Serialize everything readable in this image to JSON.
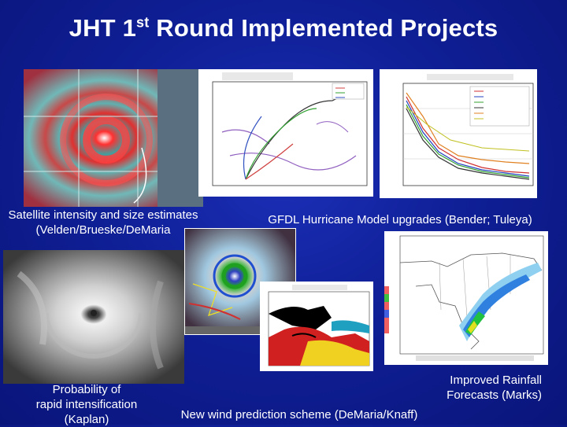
{
  "slide": {
    "title_part1": "JHT 1",
    "title_sup": "st",
    "title_part2": " Round Implemented Projects",
    "captions": {
      "satellite_line1": "Satellite intensity and size estimates",
      "satellite_line2": "(Velden/Brueske/DeMaria",
      "gfdl": "GFDL Hurricane Model upgrades (Bender; Tuleya)",
      "rapid_line1": "Probability of",
      "rapid_line2": "rapid intensification",
      "rapid_line3": "(Kaplan)",
      "wind": "New wind prediction scheme (DeMaria/Knaff)",
      "rain_line1": "Improved Rainfall",
      "rain_line2": "Forecasts (Marks)"
    }
  },
  "colors": {
    "background": "#1030b0",
    "text": "#ffffff"
  }
}
